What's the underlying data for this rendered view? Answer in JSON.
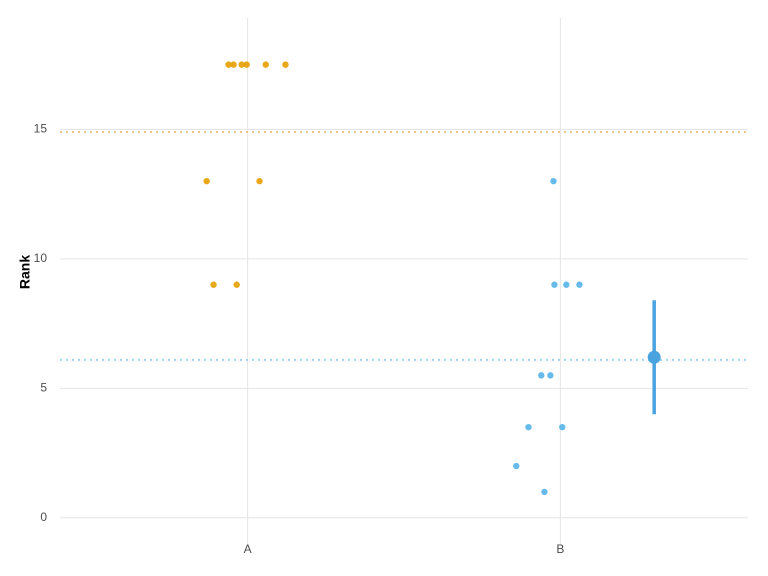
{
  "chart_data": {
    "type": "scatter",
    "y_label": "Rank",
    "xlim": [
      0.4,
      2.6
    ],
    "xticks": [
      {
        "value": 1,
        "label": "A"
      },
      {
        "value": 2,
        "label": "B"
      }
    ],
    "ylim": [
      -1.05,
      19.3
    ],
    "yticks": [
      0,
      5,
      10,
      15
    ],
    "grid": true,
    "series": [
      {
        "color": "#e69f00",
        "x": [
          0.939,
          0.955,
          0.981,
          0.997,
          1.058,
          1.121,
          0.869,
          1.038,
          0.891,
          0.965
        ],
        "values": [
          17.5,
          17.5,
          17.5,
          17.5,
          17.5,
          17.5,
          13,
          13,
          9,
          9
        ]
      },
      {
        "color": "#56b4e9",
        "x": [
          1.978,
          1.981,
          2.019,
          2.061,
          1.939,
          1.968,
          1.898,
          2.006,
          1.859,
          1.949
        ],
        "values": [
          13,
          9,
          9,
          9,
          5.5,
          5.5,
          3.5,
          3.5,
          2,
          1
        ]
      }
    ],
    "reference_lines": [
      {
        "value": 14.9,
        "color": "#f4c28f"
      },
      {
        "value": 6.1,
        "color": "#9fd3f2"
      }
    ],
    "summary": {
      "x": 2.3,
      "value": 6.2,
      "low": 4.0,
      "high": 8.4,
      "color": "#4aa3df"
    }
  }
}
